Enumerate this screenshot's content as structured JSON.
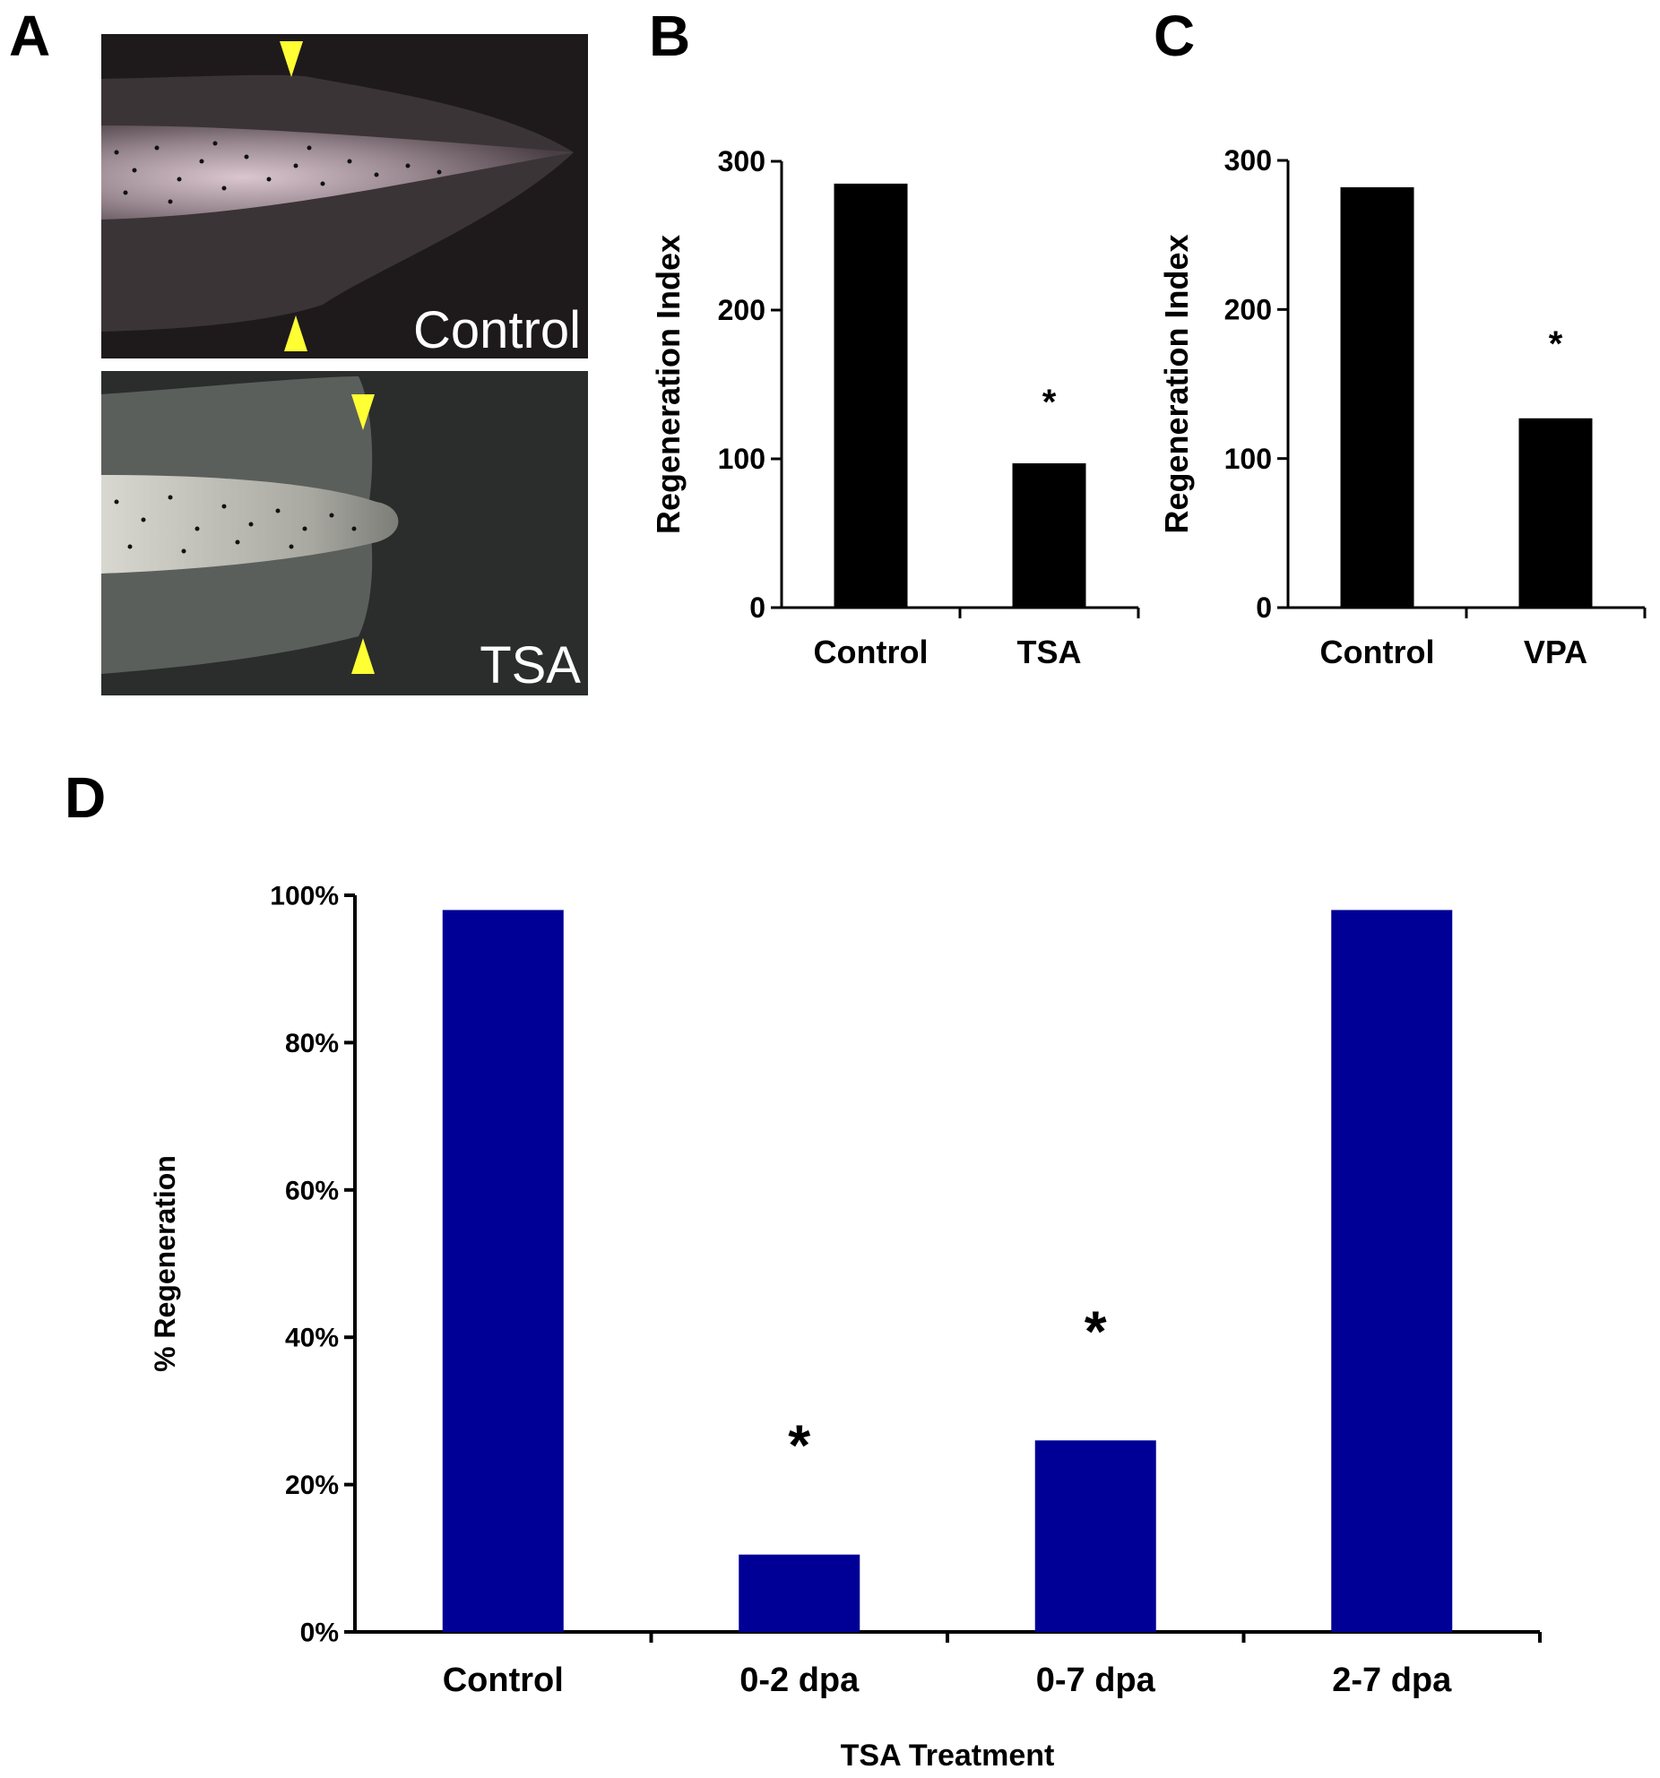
{
  "panels": {
    "a": {
      "letter": "A",
      "images": [
        {
          "label": "Control"
        },
        {
          "label": "TSA"
        }
      ]
    },
    "b": {
      "letter": "B"
    },
    "c": {
      "letter": "C"
    },
    "d": {
      "letter": "D"
    }
  },
  "colors": {
    "bw_bar": "#000000",
    "d_bar": "#000096",
    "arrowhead": "#ffff33",
    "photo_bg": "#1e1a1c"
  },
  "chart_data": [
    {
      "id": "B",
      "type": "bar",
      "categories": [
        "Control",
        "TSA"
      ],
      "values": [
        285,
        97
      ],
      "ylabel": "Regeneration Index",
      "xlabel": "",
      "ylim": [
        0,
        300
      ],
      "yticks": [
        0,
        100,
        200,
        300
      ],
      "annotations": [
        {
          "category": "TSA",
          "text": "*"
        }
      ]
    },
    {
      "id": "C",
      "type": "bar",
      "categories": [
        "Control",
        "VPA"
      ],
      "values": [
        282,
        127
      ],
      "ylabel": "Regeneration Index",
      "xlabel": "",
      "ylim": [
        0,
        300
      ],
      "yticks": [
        0,
        100,
        200,
        300
      ],
      "annotations": [
        {
          "category": "VPA",
          "text": "*"
        }
      ]
    },
    {
      "id": "D",
      "type": "bar",
      "categories": [
        "Control",
        "0-2 dpa",
        "0-7 dpa",
        "2-7 dpa"
      ],
      "values": [
        98,
        10.5,
        26,
        98
      ],
      "ylabel": "% Regeneration",
      "xlabel": "TSA Treatment",
      "ylim": [
        0,
        100
      ],
      "yticks": [
        "0%",
        "20%",
        "40%",
        "60%",
        "80%",
        "100%"
      ],
      "annotations": [
        {
          "category": "0-2 dpa",
          "text": "*"
        },
        {
          "category": "0-7 dpa",
          "text": "*"
        }
      ]
    }
  ]
}
